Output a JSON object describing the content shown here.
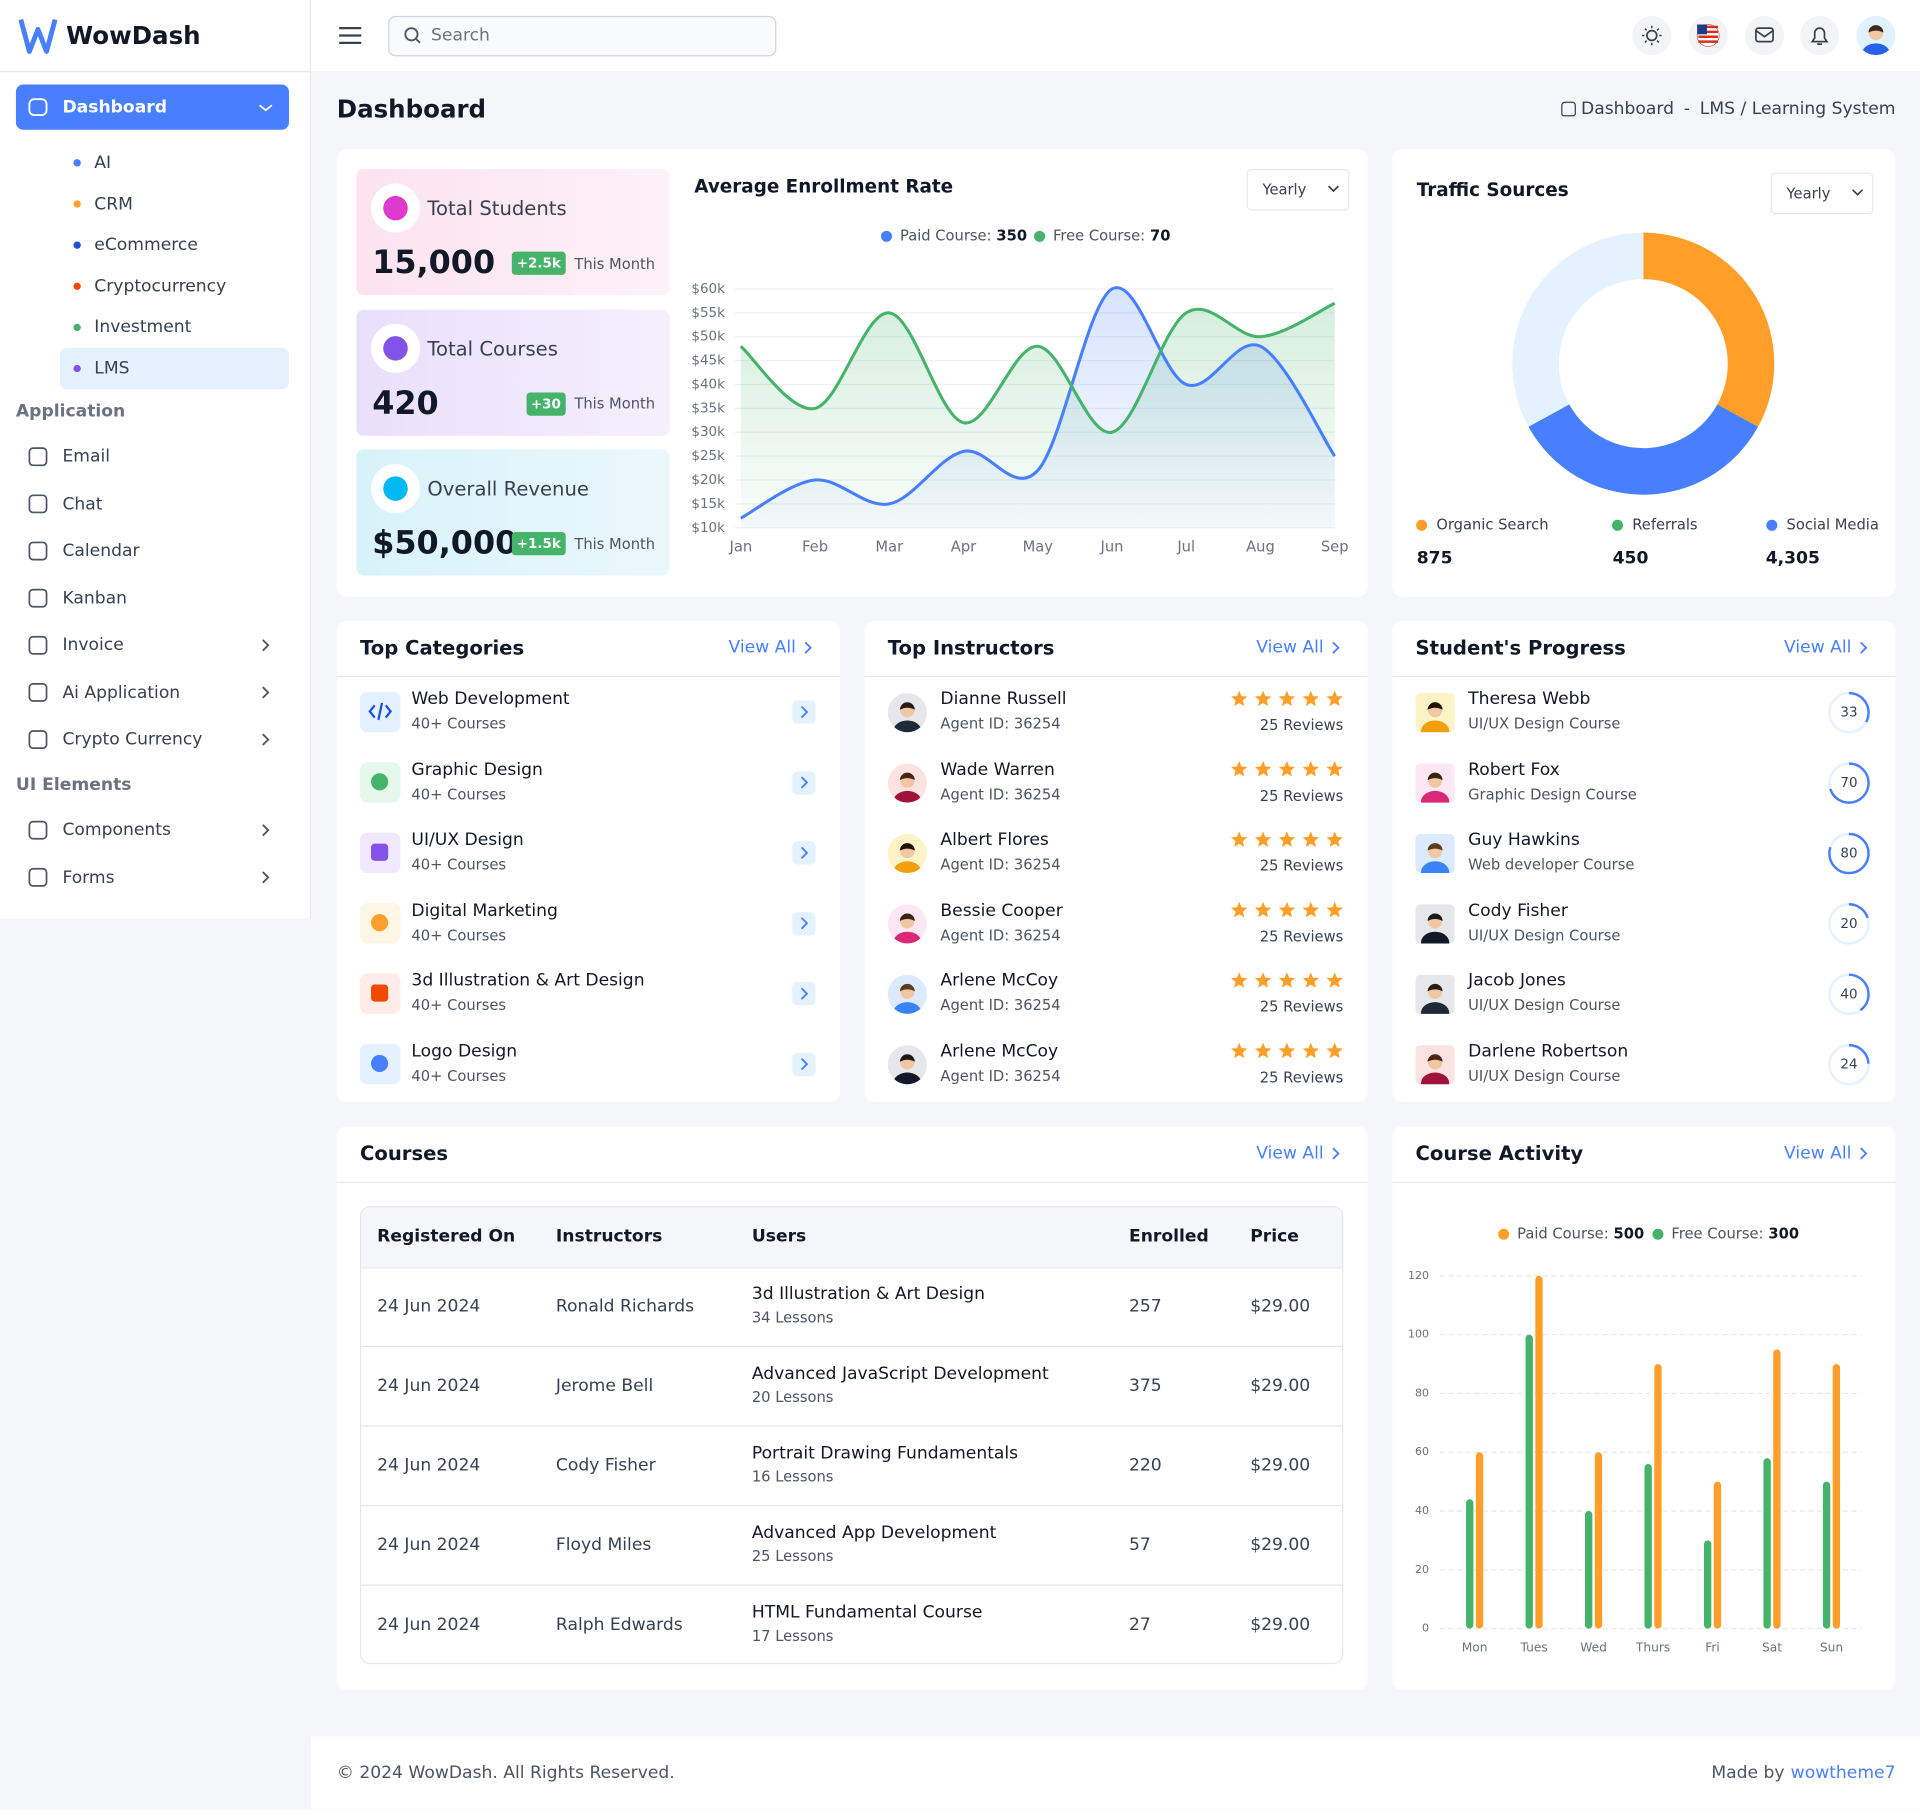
{
  "sidebar": {
    "brand": "WowDash",
    "active": "Dashboard",
    "submenu": [
      {
        "label": "AI",
        "color": "#487FFF"
      },
      {
        "label": "CRM",
        "color": "#FF9F29"
      },
      {
        "label": "eCommerce",
        "color": "#1D4ED8"
      },
      {
        "label": "Cryptocurrency",
        "color": "#EF4A00"
      },
      {
        "label": "Investment",
        "color": "#45B369"
      },
      {
        "label": "LMS",
        "color": "#8252E9",
        "selected": true
      }
    ],
    "sections": [
      {
        "title": "Application",
        "items": [
          {
            "label": "Email"
          },
          {
            "label": "Chat"
          },
          {
            "label": "Calendar"
          },
          {
            "label": "Kanban"
          },
          {
            "label": "Invoice",
            "has_children": true
          },
          {
            "label": "Ai Application",
            "has_children": true
          },
          {
            "label": "Crypto Currency",
            "has_children": true
          }
        ]
      },
      {
        "title": "UI Elements",
        "items": [
          {
            "label": "Components",
            "has_children": true
          },
          {
            "label": "Forms",
            "has_children": true
          }
        ]
      }
    ]
  },
  "header": {
    "search": "Search"
  },
  "page": {
    "title": "Dashboard",
    "breadcrumb": [
      "Dashboard",
      "-",
      "LMS / Learning System"
    ]
  },
  "stats": [
    {
      "label": "Total Students",
      "value": "15,000",
      "change": "+2.5k",
      "period": "This Month"
    },
    {
      "label": "Total Courses",
      "value": "420",
      "change": "+30",
      "period": "This Month"
    },
    {
      "label": "Overall Revenue",
      "value": "$50,000",
      "change": "+1.5k",
      "period": "This Month"
    }
  ],
  "chart_data": [
    {
      "type": "line",
      "title": "Average Enrollment Rate",
      "filter": "Yearly",
      "categories": [
        "Jan",
        "Feb",
        "Mar",
        "Apr",
        "May",
        "Jun",
        "Jul",
        "Aug",
        "Sep"
      ],
      "series": [
        {
          "name": "Paid Course:",
          "total": 350,
          "color": "#487FFF",
          "values": [
            12000,
            20000,
            15000,
            26000,
            22000,
            60000,
            40000,
            48000,
            25000
          ]
        },
        {
          "name": "Free Course:",
          "total": 70,
          "color": "#45B369",
          "values": [
            48000,
            35000,
            55000,
            32000,
            48000,
            30000,
            55000,
            50000,
            57000
          ]
        }
      ],
      "ylim": [
        10000,
        60000
      ],
      "yticks": [
        {
          "value": 10000,
          "label": "$10k"
        },
        {
          "value": 15000,
          "label": "$15k"
        },
        {
          "value": 20000,
          "label": "$20k"
        },
        {
          "value": 25000,
          "label": "$25k"
        },
        {
          "value": 30000,
          "label": "$30k"
        },
        {
          "value": 35000,
          "label": "$35k"
        },
        {
          "value": 40000,
          "label": "$40k"
        },
        {
          "value": 45000,
          "label": "$45k"
        },
        {
          "value": 50000,
          "label": "$50k"
        },
        {
          "value": 55000,
          "label": "$55k"
        },
        {
          "value": 60000,
          "label": "$60k"
        }
      ],
      "grid": true
    },
    {
      "type": "donut",
      "title": "Traffic Sources",
      "filter": "Yearly",
      "series": [
        {
          "name": "Organic Search",
          "color": "#FF9F29",
          "slice_color": "#FF9F29",
          "value": 33,
          "total": 875
        },
        {
          "name": "Referrals",
          "color": "#45B369",
          "slice_color": "#487FFF",
          "value": 34,
          "total": 450
        },
        {
          "name": "Social Media",
          "color": "#487FFF",
          "slice_color": "#E4F1FF",
          "value": 33,
          "total": 4305,
          "total_label": "4,305"
        }
      ]
    },
    {
      "type": "bar",
      "title": "Course Activity",
      "view_all": "View All",
      "categories": [
        "Mon",
        "Tues",
        "Wed",
        "Thurs",
        "Fri",
        "Sat",
        "Sun"
      ],
      "series": [
        {
          "name": "Paid Course:",
          "total": 500,
          "color": "#FF9F29",
          "values": [
            60,
            120,
            60,
            90,
            50,
            95,
            90
          ]
        },
        {
          "name": "Free Course:",
          "total": 300,
          "color": "#45B369",
          "values": [
            44,
            100,
            40,
            56,
            30,
            58,
            50
          ]
        }
      ],
      "ylim": [
        0,
        120
      ],
      "yticks": [
        0,
        20,
        40,
        60,
        80,
        100,
        120
      ],
      "grid": true
    }
  ],
  "top_categories": {
    "title": "Top Categories",
    "view_all": "View All",
    "items": [
      {
        "name": "Web Development",
        "sub": "40+ Courses"
      },
      {
        "name": "Graphic Design",
        "sub": "40+ Courses"
      },
      {
        "name": "UI/UX Design",
        "sub": "40+ Courses"
      },
      {
        "name": "Digital Marketing",
        "sub": "40+ Courses"
      },
      {
        "name": "3d Illustration & Art Design",
        "sub": "40+ Courses"
      },
      {
        "name": "Logo Design",
        "sub": "40+ Courses"
      }
    ]
  },
  "top_instructors": {
    "title": "Top Instructors",
    "view_all": "View All",
    "items": [
      {
        "name": "Dianne Russell",
        "sub": "Agent ID: 36254",
        "rating": 5,
        "reviews": "25 Reviews"
      },
      {
        "name": "Wade Warren",
        "sub": "Agent ID: 36254",
        "rating": 5,
        "reviews": "25 Reviews"
      },
      {
        "name": "Albert Flores",
        "sub": "Agent ID: 36254",
        "rating": 5,
        "reviews": "25 Reviews"
      },
      {
        "name": "Bessie Cooper",
        "sub": "Agent ID: 36254",
        "rating": 5,
        "reviews": "25 Reviews"
      },
      {
        "name": "Arlene McCoy",
        "sub": "Agent ID: 36254",
        "rating": 5,
        "reviews": "25 Reviews"
      },
      {
        "name": "Arlene McCoy",
        "sub": "Agent ID: 36254",
        "rating": 5,
        "reviews": "25 Reviews"
      }
    ]
  },
  "student_progress": {
    "title": "Student's Progress",
    "view_all": "View All",
    "items": [
      {
        "name": "Theresa Webb",
        "sub": "UI/UX Design Course",
        "progress": 33
      },
      {
        "name": "Robert Fox",
        "sub": "Graphic Design Course",
        "progress": 70
      },
      {
        "name": "Guy Hawkins",
        "sub": "Web developer Course",
        "progress": 80
      },
      {
        "name": "Cody Fisher",
        "sub": "UI/UX Design Course",
        "progress": 20
      },
      {
        "name": "Jacob Jones",
        "sub": "UI/UX Design Course",
        "progress": 40
      },
      {
        "name": "Darlene Robertson",
        "sub": "UI/UX Design Course",
        "progress": 24
      }
    ]
  },
  "courses": {
    "title": "Courses",
    "view_all": "View All",
    "columns": [
      "Registered On",
      "Instructors",
      "Users",
      "Enrolled",
      "Price"
    ],
    "rows": [
      [
        "24 Jun 2024",
        "Ronald Richards",
        "3d Illustration & Art Design",
        "34 Lessons",
        257,
        "$29.00"
      ],
      [
        "24 Jun 2024",
        "Jerome Bell",
        "Advanced JavaScript Development",
        "20 Lessons",
        375,
        "$29.00"
      ],
      [
        "24 Jun 2024",
        "Cody Fisher",
        "Portrait Drawing Fundamentals",
        "16 Lessons",
        220,
        "$29.00"
      ],
      [
        "24 Jun 2024",
        "Floyd Miles",
        "Advanced App Development",
        "25 Lessons",
        57,
        "$29.00"
      ],
      [
        "24 Jun 2024",
        "Ralph Edwards",
        "HTML Fundamental Course",
        "17 Lessons",
        27,
        "$29.00"
      ]
    ]
  },
  "footer": {
    "copyright": "© 2024 WowDash. All Rights Reserved.",
    "made_by": "Made by",
    "author": "wowtheme7"
  }
}
